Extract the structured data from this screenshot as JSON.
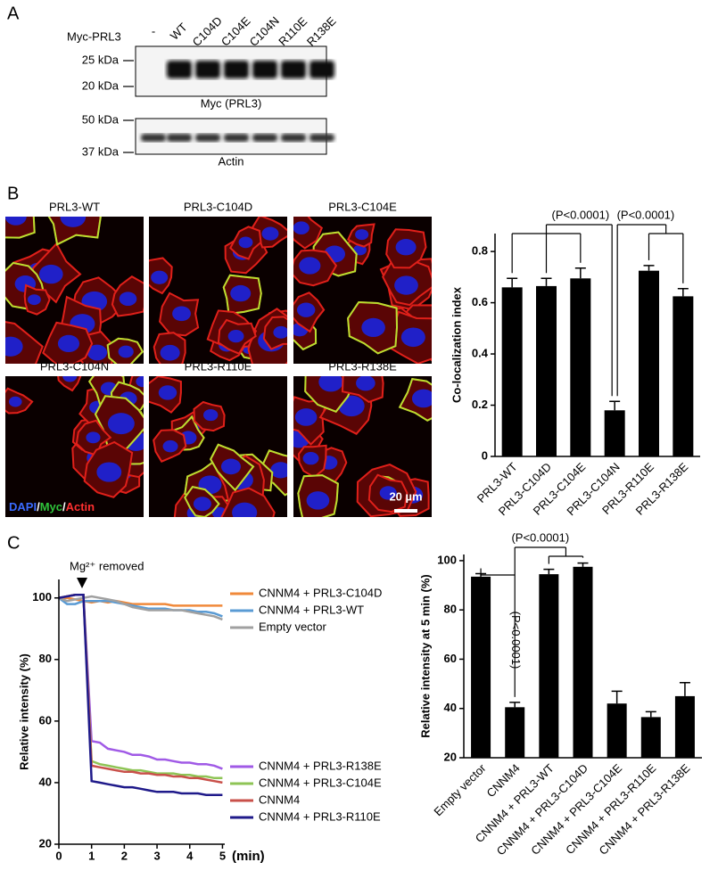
{
  "panel_labels": [
    "A",
    "B",
    "C"
  ],
  "blot": {
    "row_label": "Myc-PRL3",
    "lanes": [
      "-",
      "WT",
      "C104D",
      "C104E",
      "C104N",
      "R110E",
      "R138E"
    ],
    "myc_markers": [
      "25 kDa",
      "20 kDa"
    ],
    "myc_caption": "Myc (PRL3)",
    "actin_markers": [
      "50 kDa",
      "37 kDa"
    ],
    "actin_caption": "Actin"
  },
  "micrographs": {
    "titles": [
      "PRL3-WT",
      "PRL3-C104D",
      "PRL3-C104E",
      "PRL3-C104N",
      "PRL3-R110E",
      "PRL3-R138E"
    ],
    "stain_labels": [
      "DAPI",
      "/",
      "Myc",
      "/",
      "Actin"
    ],
    "scale_bar": "20 µm"
  },
  "chart_data": [
    {
      "type": "bar",
      "ylabel": "Co-localization index",
      "categories": [
        "PRL3-WT",
        "PRL3-C104D",
        "PRL3-C104E",
        "PRL3-C104N",
        "PRL3-R110E",
        "PRL3-R138E"
      ],
      "values": [
        0.66,
        0.665,
        0.695,
        0.18,
        0.725,
        0.625
      ],
      "errors": [
        0.035,
        0.03,
        0.04,
        0.035,
        0.02,
        0.03
      ],
      "color": "#000000",
      "ylim": [
        0,
        0.87
      ],
      "yticks": [
        0,
        0.2,
        0.4,
        0.6,
        0.8
      ],
      "annotations": [
        "(P<0.0001)",
        "(P<0.0001)"
      ]
    },
    {
      "type": "line",
      "xlabel": "(min)",
      "ylabel": "Relative intensity (%)",
      "annotation": "Mg²⁺ removed",
      "x": [
        0,
        0.25,
        0.5,
        0.75,
        1,
        1.25,
        1.5,
        1.75,
        2,
        2.25,
        2.5,
        2.75,
        3,
        3.25,
        3.5,
        3.75,
        4,
        4.25,
        4.5,
        4.75,
        5
      ],
      "xlim": [
        0,
        5.07
      ],
      "xticks": [
        0,
        1,
        2,
        3,
        4,
        5
      ],
      "ylim": [
        20,
        106
      ],
      "yticks": [
        20,
        40,
        60,
        80,
        100
      ],
      "series": [
        {
          "name": "CNNM4 + PRL3-C104D",
          "color": "#f0893a",
          "values": [
            100,
            100,
            99.5,
            99,
            98.5,
            99,
            98.5,
            99,
            98.5,
            98,
            98,
            98,
            98,
            98,
            97.5,
            97.5,
            97.5,
            97.5,
            97.5,
            97.5,
            97.5
          ]
        },
        {
          "name": "CNNM4 + PRL3-WT",
          "color": "#5a9bd4",
          "values": [
            100,
            98,
            98,
            99,
            99,
            99,
            99,
            98.5,
            98,
            97.5,
            97,
            96.5,
            96.5,
            96.5,
            96,
            96,
            96,
            95.5,
            95.5,
            95,
            94
          ]
        },
        {
          "name": "Empty vector",
          "color": "#a0a0a0",
          "values": [
            100,
            99,
            99.5,
            100,
            100.5,
            100,
            99.5,
            99,
            98,
            97,
            96.5,
            96,
            96,
            96,
            96,
            96,
            95.5,
            95,
            94.5,
            94,
            93
          ]
        },
        {
          "name": "CNNM4 + PRL3-R138E",
          "color": "#a05ae6",
          "values": [
            100,
            100.5,
            101,
            101,
            53.5,
            53,
            51,
            50.5,
            50,
            49,
            49,
            48.5,
            47.5,
            47.5,
            47,
            46.5,
            46.5,
            46,
            46,
            45.5,
            44.5
          ]
        },
        {
          "name": "CNNM4 + PRL3-C104E",
          "color": "#8ec455",
          "values": [
            100,
            100.5,
            101,
            101,
            47,
            46,
            45.5,
            45,
            44.5,
            44,
            44,
            43.5,
            43,
            43,
            43,
            42.5,
            42.5,
            42,
            42,
            41.5,
            41.5
          ]
        },
        {
          "name": "CNNM4",
          "color": "#c9504a",
          "values": [
            100,
            100.5,
            101,
            101,
            45.5,
            45,
            44.5,
            44,
            43.5,
            43.5,
            43,
            43,
            42.5,
            42.5,
            42,
            42,
            41.5,
            41.5,
            41,
            40.5,
            40
          ]
        },
        {
          "name": "CNNM4 + PRL3-R110E",
          "color": "#1f1a8a",
          "values": [
            100,
            100.5,
            101,
            101,
            40.5,
            40,
            39.5,
            39,
            38.5,
            38.5,
            38,
            37.5,
            37,
            37,
            37,
            36.5,
            36.5,
            36.5,
            36,
            36,
            36
          ]
        }
      ]
    },
    {
      "type": "bar",
      "ylabel": "Relative intensity at 5 min (%)",
      "categories": [
        "Empty vector",
        "CNNM4",
        "CNNM4 + PRL3-WT",
        "CNNM4 + PRL3-C104D",
        "CNNM4 + PRL3-C104E",
        "CNNM4 + PRL3-R110E",
        "CNNM4 + PRL3-R138E"
      ],
      "values": [
        93.5,
        40.5,
        94.5,
        97.5,
        42,
        36.5,
        45
      ],
      "errors": [
        1.2,
        2,
        2,
        1.5,
        5,
        2.2,
        5.5
      ],
      "color": "#000000",
      "ylim": [
        20,
        102.5
      ],
      "yticks": [
        20,
        40,
        60,
        80,
        100
      ],
      "annotations": [
        "(P<0.0001)",
        "(P<0.0001)"
      ]
    }
  ]
}
